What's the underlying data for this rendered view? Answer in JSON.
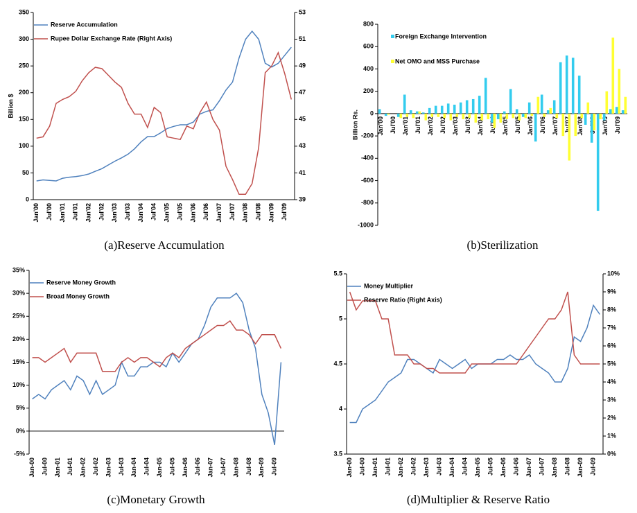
{
  "chart_data": [
    {
      "type": "line",
      "title": "(a)Reserve Accumulation",
      "ylabel": "Billion $",
      "legend": "upper left",
      "categories": [
        "Jan'00",
        null,
        "Jul'00",
        null,
        "Jan'01",
        null,
        "Jul'01",
        null,
        "Jan'02",
        null,
        "Jul'02",
        null,
        "Jan'03",
        null,
        "Jul'03",
        null,
        "Jan'04",
        null,
        "Jul'04",
        null,
        "Jan'05",
        null,
        "Jul'05",
        null,
        "Jan'06",
        null,
        "Jul'06",
        null,
        "Jan'07",
        null,
        "Jul'07",
        null,
        "Jan'08",
        null,
        "Jul'08",
        null,
        "Jan'09",
        null,
        "Jul'09",
        null
      ],
      "ylim": [
        0,
        350
      ],
      "yticks": [
        0,
        50,
        100,
        150,
        200,
        250,
        300,
        350
      ],
      "y2lim": [
        39,
        53
      ],
      "y2ticks": [
        39,
        41,
        43,
        45,
        47,
        49,
        51,
        53
      ],
      "series": [
        {
          "name": "Reserve Accumulation",
          "color": "#4f81bd",
          "values": [
            35,
            37,
            36,
            35,
            40,
            42,
            43,
            45,
            48,
            53,
            58,
            65,
            72,
            78,
            85,
            95,
            108,
            118,
            118,
            125,
            133,
            137,
            140,
            140,
            145,
            160,
            165,
            168,
            185,
            205,
            220,
            265,
            300,
            315,
            300,
            255,
            248,
            255,
            270,
            285
          ]
        },
        {
          "name": "Rupee Dollar Exchange Rate (Right Axis)",
          "color": "#c0504d",
          "axis": "y2",
          "values": [
            43.6,
            43.7,
            44.5,
            46.2,
            46.5,
            46.7,
            47.1,
            47.9,
            48.5,
            48.9,
            48.8,
            48.3,
            47.8,
            47.4,
            46.2,
            45.4,
            45.4,
            44.4,
            45.9,
            45.5,
            43.7,
            43.6,
            43.5,
            44.5,
            44.3,
            45.5,
            46.3,
            45.0,
            44.2,
            41.5,
            40.5,
            39.4,
            39.4,
            40.2,
            42.9,
            48.5,
            49.0,
            50.0,
            48.4,
            46.5
          ]
        }
      ]
    },
    {
      "type": "bar",
      "title": "(b)Sterilization",
      "ylabel": "Billion Rs.",
      "legend": "upper left",
      "categories": [
        "Jan'00",
        null,
        "Jul'00",
        null,
        "Jan'01",
        null,
        "Jul'01",
        null,
        "Jan'02",
        null,
        "Jul'02",
        null,
        "Jan'03",
        null,
        "Jul'03",
        null,
        "Jan'04",
        null,
        "Jul'04",
        null,
        "Jan'05",
        null,
        "Jul'05",
        null,
        "Jan'06",
        null,
        "Jul'06",
        null,
        "Jan'07",
        null,
        "Jul'07",
        null,
        "Jan'08",
        null,
        "Jul'08",
        null,
        "Jan'09",
        null,
        "Jul'09",
        null
      ],
      "ylim": [
        -1000,
        800
      ],
      "yticks": [
        -1000,
        -800,
        -600,
        -400,
        -200,
        0,
        200,
        400,
        600,
        800
      ],
      "series": [
        {
          "name": "Foreign Exchange Intervention",
          "color": "#33ccee",
          "values": [
            40,
            -20,
            0,
            -30,
            170,
            30,
            20,
            10,
            50,
            70,
            70,
            90,
            80,
            100,
            120,
            130,
            160,
            320,
            -80,
            -50,
            20,
            220,
            40,
            -30,
            100,
            -250,
            170,
            30,
            120,
            460,
            520,
            500,
            340,
            -100,
            -260,
            -870,
            -60,
            40,
            60,
            30
          ]
        },
        {
          "name": "Net OMO and MSS Purchase",
          "color": "#ffff33",
          "values": [
            0,
            -10,
            0,
            -40,
            -30,
            -40,
            20,
            -60,
            -30,
            -30,
            -40,
            -60,
            -30,
            -50,
            -40,
            -80,
            -60,
            -50,
            -130,
            -80,
            -50,
            -40,
            -60,
            -40,
            -20,
            150,
            -30,
            50,
            -40,
            -200,
            -420,
            -200,
            -40,
            100,
            -150,
            -50,
            200,
            680,
            400,
            150
          ]
        }
      ]
    },
    {
      "type": "line",
      "title": "(c)Monetary Growth",
      "legend": "upper left",
      "categories": [
        "Jan-00",
        null,
        "Jul-00",
        null,
        "Jan-01",
        null,
        "Jul-01",
        null,
        "Jan-02",
        null,
        "Jul-02",
        null,
        "Jan-03",
        null,
        "Jul-03",
        null,
        "Jan-04",
        null,
        "Jul-04",
        null,
        "Jan-05",
        null,
        "Jul-05",
        null,
        "Jan-06",
        null,
        "Jul-06",
        null,
        "Jan-07",
        null,
        "Jul-07",
        null,
        "Jan-08",
        null,
        "Jul-08",
        null,
        "Jan-09",
        null,
        "Jul-09",
        null
      ],
      "ylim": [
        -5,
        35
      ],
      "yticks": [
        {
          "value": -5,
          "label": "-5%"
        },
        {
          "value": 0,
          "label": "0%"
        },
        {
          "value": 5,
          "label": "5%"
        },
        {
          "value": 10,
          "label": "10%"
        },
        {
          "value": 15,
          "label": "15%"
        },
        {
          "value": 20,
          "label": "20%"
        },
        {
          "value": 25,
          "label": "25%"
        },
        {
          "value": 30,
          "label": "30%"
        },
        {
          "value": 35,
          "label": "35%"
        }
      ],
      "series": [
        {
          "name": "Reserve Money Growth",
          "color": "#4f81bd",
          "values": [
            7,
            8,
            7,
            9,
            10,
            11,
            9,
            12,
            11,
            8,
            11,
            8,
            9,
            10,
            15,
            12,
            12,
            14,
            14,
            15,
            15,
            14,
            17,
            15,
            17,
            19,
            20,
            23,
            27,
            29,
            29,
            29,
            30,
            28,
            22,
            18,
            8,
            4,
            -3,
            15
          ]
        },
        {
          "name": "Broad Money Growth",
          "color": "#c0504d",
          "values": [
            16,
            16,
            15,
            16,
            17,
            18,
            15,
            17,
            17,
            17,
            17,
            13,
            13,
            13,
            15,
            16,
            15,
            16,
            16,
            15,
            14,
            16,
            17,
            16,
            18,
            19,
            20,
            21,
            22,
            23,
            23,
            24,
            22,
            22,
            21,
            19,
            21,
            21,
            21,
            18
          ]
        }
      ]
    },
    {
      "type": "line",
      "title": "(d)Multiplier & Reserve Ratio",
      "legend": "upper left",
      "categories": [
        "Jan-00",
        null,
        "Jul-00",
        null,
        "Jan-01",
        null,
        "Jul-01",
        null,
        "Jan-02",
        null,
        "Jul-02",
        null,
        "Jan-03",
        null,
        "Jul-03",
        null,
        "Jan-04",
        null,
        "Jul-04",
        null,
        "Jan-05",
        null,
        "Jul-05",
        null,
        "Jan-06",
        null,
        "Jul-06",
        null,
        "Jan-07",
        null,
        "Jul-07",
        null,
        "Jan-08",
        null,
        "Jul-08",
        null,
        "Jan-09",
        null,
        "Jul-09",
        null
      ],
      "ylim": [
        3.5,
        5.5
      ],
      "yticks": [
        3.5,
        4,
        4.5,
        5,
        5.5
      ],
      "y2lim": [
        0,
        10
      ],
      "y2ticks": [
        {
          "value": 0,
          "label": "0%"
        },
        {
          "value": 1,
          "label": "1%"
        },
        {
          "value": 2,
          "label": "2%"
        },
        {
          "value": 3,
          "label": "3%"
        },
        {
          "value": 4,
          "label": "4%"
        },
        {
          "value": 5,
          "label": "5%"
        },
        {
          "value": 6,
          "label": "6%"
        },
        {
          "value": 7,
          "label": "7%"
        },
        {
          "value": 8,
          "label": "8%"
        },
        {
          "value": 9,
          "label": "9%"
        },
        {
          "value": 10,
          "label": "10%"
        }
      ],
      "series": [
        {
          "name": "Money Multiplier",
          "color": "#4f81bd",
          "values": [
            3.85,
            3.85,
            4.0,
            4.05,
            4.1,
            4.2,
            4.3,
            4.35,
            4.4,
            4.55,
            4.55,
            4.5,
            4.45,
            4.4,
            4.55,
            4.5,
            4.45,
            4.5,
            4.55,
            4.45,
            4.5,
            4.5,
            4.5,
            4.55,
            4.55,
            4.6,
            4.55,
            4.55,
            4.6,
            4.5,
            4.45,
            4.4,
            4.3,
            4.3,
            4.45,
            4.8,
            4.75,
            4.9,
            5.15,
            5.05
          ]
        },
        {
          "name": "Reserve Ratio (Right Axis)",
          "color": "#c0504d",
          "axis": "y2",
          "values": [
            9,
            8,
            8.5,
            8.5,
            8.5,
            7.5,
            7.5,
            5.5,
            5.5,
            5.5,
            5,
            5,
            4.75,
            4.75,
            4.5,
            4.5,
            4.5,
            4.5,
            4.5,
            5,
            5,
            5,
            5,
            5,
            5,
            5,
            5,
            5.5,
            6,
            6.5,
            7,
            7.5,
            7.5,
            8,
            9,
            5.5,
            5,
            5,
            5,
            5
          ]
        }
      ]
    }
  ]
}
